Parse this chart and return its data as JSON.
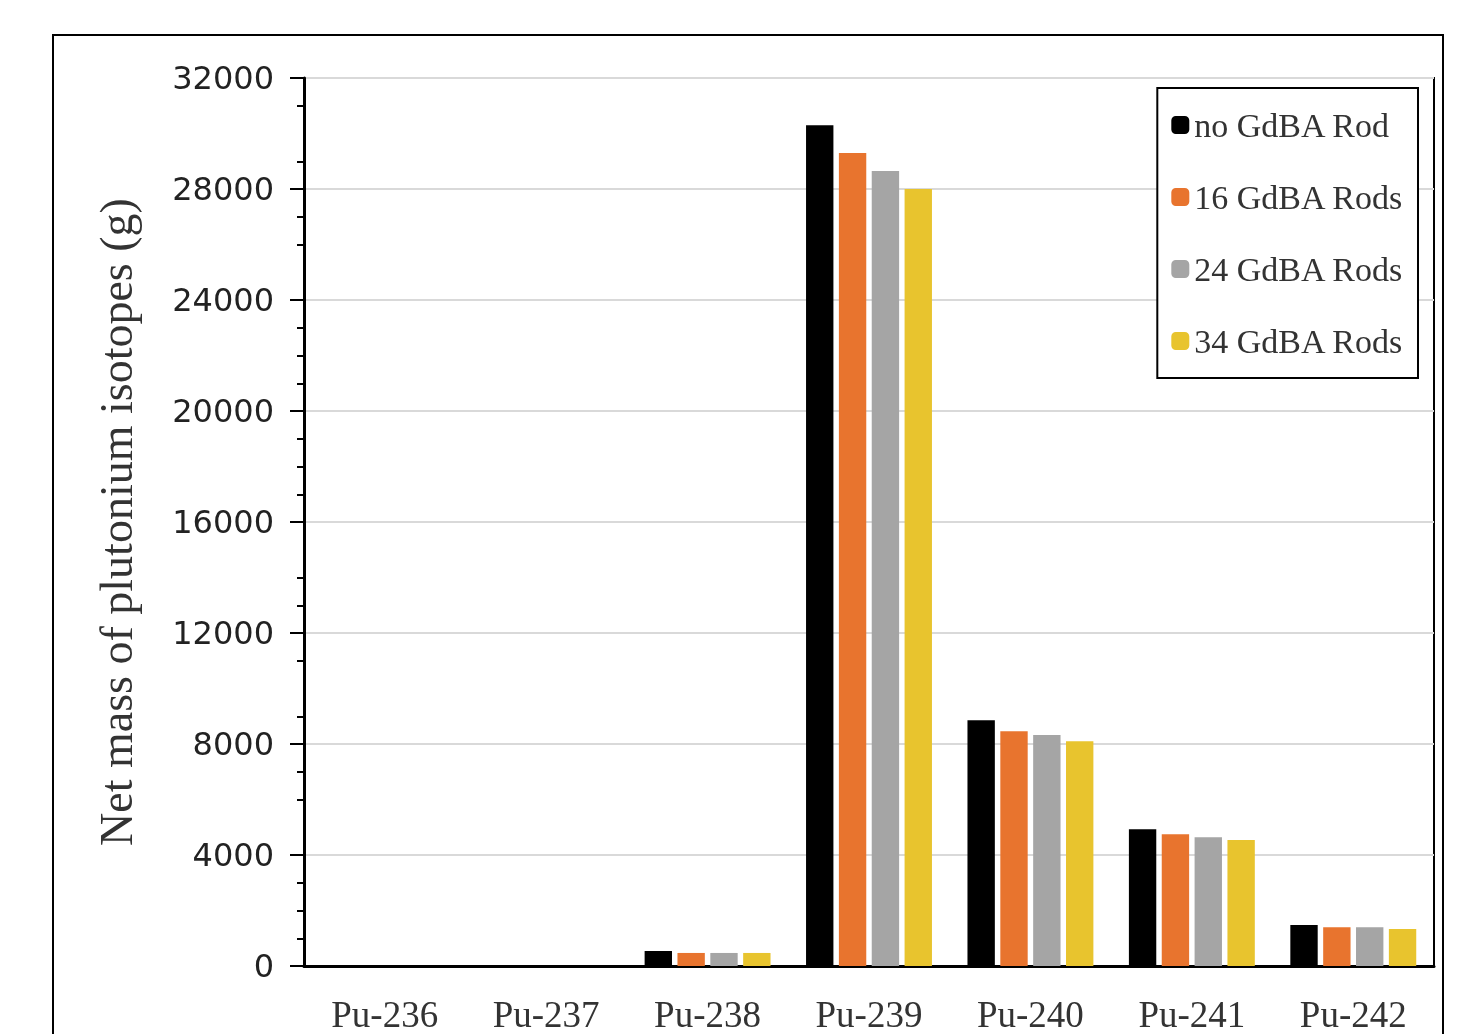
{
  "chart_data": {
    "type": "bar",
    "ylabel": "Net mass of plutonium isotopes (g)",
    "categories": [
      "Pu-236",
      "Pu-237",
      "Pu-238",
      "Pu-239",
      "Pu-240",
      "Pu-241",
      "Pu-242"
    ],
    "series": [
      {
        "name": "no GdBA Rod",
        "color": "#000000",
        "values": [
          0,
          0,
          540,
          30300,
          8860,
          4930,
          1480
        ]
      },
      {
        "name": "16 GdBA Rods",
        "color": "#e8742e",
        "values": [
          0,
          0,
          470,
          29300,
          8460,
          4750,
          1400
        ]
      },
      {
        "name": "24 GdBA Rods",
        "color": "#a5a5a5",
        "values": [
          0,
          0,
          470,
          28650,
          8320,
          4640,
          1400
        ]
      },
      {
        "name": "34 GdBA Rods",
        "color": "#e8c42e",
        "values": [
          0,
          0,
          470,
          28000,
          8100,
          4540,
          1330
        ]
      }
    ],
    "ylim": [
      0,
      32000
    ],
    "yticks": [
      0,
      4000,
      8000,
      12000,
      16000,
      20000,
      24000,
      28000,
      32000
    ],
    "grid": "y",
    "legend": "top right"
  }
}
